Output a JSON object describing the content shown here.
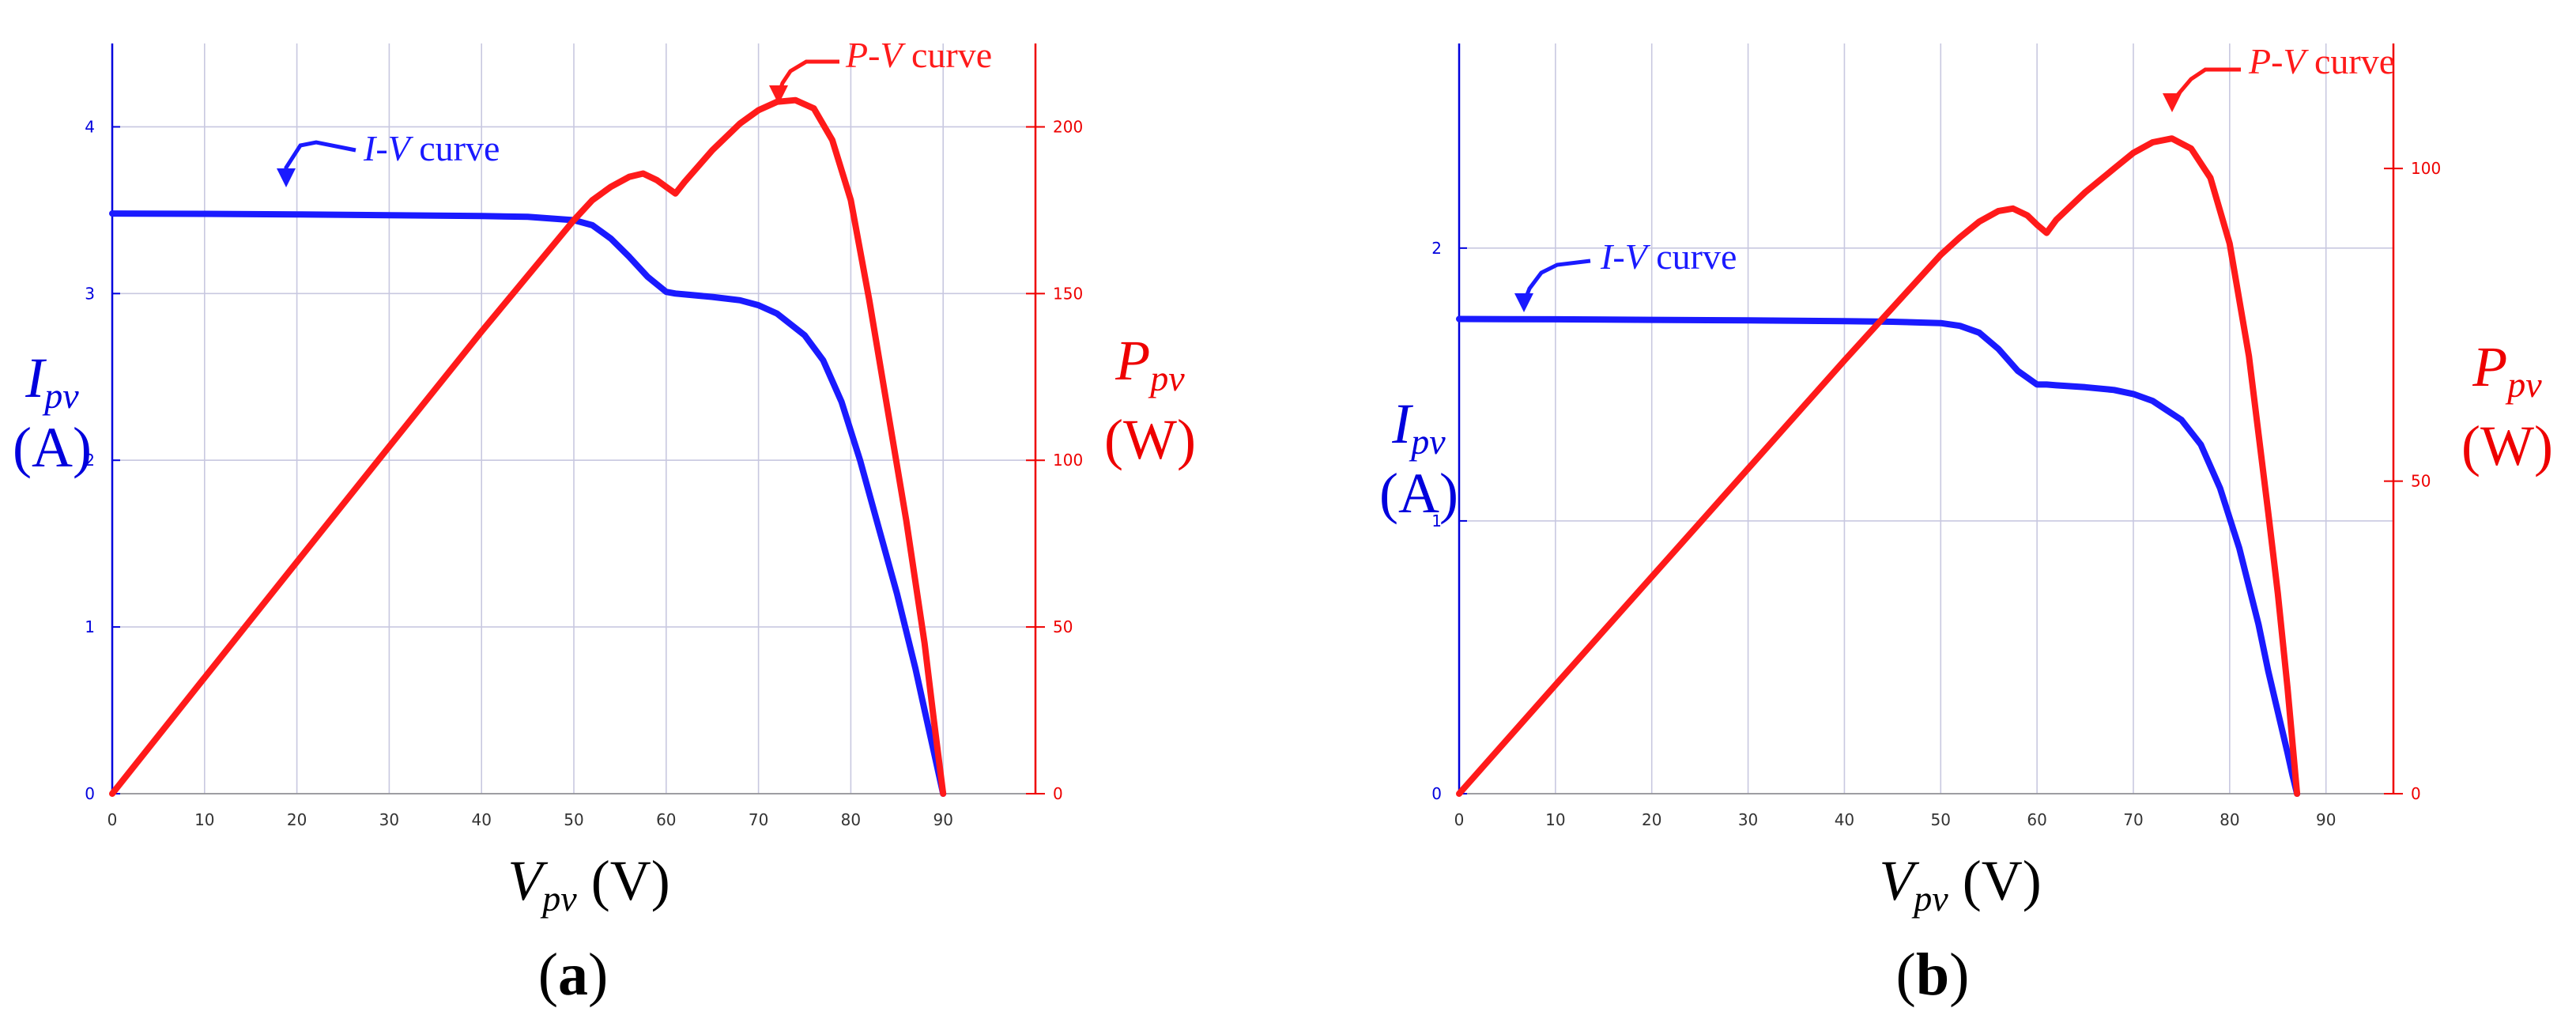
{
  "colors": {
    "current": "#1a1aff",
    "power": "#ff1a1a",
    "grid": "#c8c8e0",
    "axis_left": "#0000dd",
    "axis_right": "#ee0000"
  },
  "chart_data": [
    {
      "panel": "(a)",
      "panel_letter": "a",
      "type": "line",
      "x_axis": {
        "symbol": "V",
        "subscript": "pv",
        "unit": "(V)",
        "range": [
          0,
          100
        ],
        "ticks": [
          0,
          10,
          20,
          30,
          40,
          50,
          60,
          70,
          80,
          90
        ]
      },
      "y_left": {
        "symbol": "I",
        "subscript": "pv",
        "unit": "(A)",
        "range": [
          0,
          4.5
        ],
        "ticks": [
          0,
          1,
          2,
          3,
          4
        ],
        "tick_labels": [
          "0",
          "1",
          "2",
          "3",
          "4"
        ]
      },
      "y_right": {
        "symbol": "P",
        "subscript": "pv",
        "unit": "(W)",
        "range": [
          0,
          225
        ],
        "ticks": [
          0,
          50,
          100,
          150,
          200
        ],
        "tick_labels": [
          "0",
          "50",
          "100",
          "150",
          "200"
        ]
      },
      "grid": true,
      "series": [
        {
          "name": "I-V curve",
          "axis": "left",
          "x": [
            0,
            10,
            20,
            30,
            40,
            45,
            50,
            52,
            54,
            56,
            58,
            60,
            61,
            62,
            65,
            68,
            70,
            72,
            75,
            77,
            79,
            81,
            83,
            85,
            87,
            88,
            89,
            90
          ],
          "y": [
            3.48,
            3.478,
            3.475,
            3.47,
            3.465,
            3.46,
            3.44,
            3.41,
            3.33,
            3.22,
            3.1,
            3.01,
            3.0,
            2.995,
            2.98,
            2.96,
            2.93,
            2.88,
            2.75,
            2.6,
            2.35,
            2.0,
            1.6,
            1.2,
            0.75,
            0.5,
            0.25,
            0.0
          ]
        },
        {
          "name": "P-V curve",
          "axis": "right",
          "x": [
            0,
            10,
            20,
            30,
            40,
            50,
            52,
            54,
            56,
            57.5,
            59,
            60,
            61,
            62,
            65,
            68,
            70,
            72,
            74,
            76,
            78,
            80,
            82,
            84,
            86,
            88,
            89,
            90
          ],
          "y": [
            0,
            34.8,
            69.5,
            104.1,
            138.6,
            172,
            178,
            182,
            185,
            186,
            184,
            182,
            180,
            183.5,
            193,
            201,
            205,
            207.5,
            208,
            205.5,
            196,
            178,
            148,
            115,
            82,
            45,
            22,
            0
          ]
        }
      ],
      "annotations": [
        {
          "italic": "I-V",
          "text": "curve",
          "target_series": "I-V curve"
        },
        {
          "italic": "P-V",
          "text": "curve",
          "target_series": "P-V curve"
        }
      ]
    },
    {
      "panel": "(b)",
      "panel_letter": "b",
      "type": "line",
      "x_axis": {
        "symbol": "V",
        "subscript": "pv",
        "unit": "(V)",
        "range": [
          0,
          97
        ],
        "ticks": [
          0,
          10,
          20,
          30,
          40,
          50,
          60,
          70,
          80,
          90
        ]
      },
      "y_left": {
        "symbol": "I",
        "subscript": "pv",
        "unit": "(A)",
        "range": [
          0,
          2.75
        ],
        "ticks": [
          0,
          1,
          2
        ],
        "tick_labels": [
          "0",
          "1",
          "2"
        ]
      },
      "y_right": {
        "symbol": "P",
        "subscript": "pv",
        "unit": "(W)",
        "range": [
          0,
          120
        ],
        "ticks": [
          0,
          50,
          100
        ],
        "tick_labels": [
          "0",
          "50",
          "100"
        ]
      },
      "grid": true,
      "series": [
        {
          "name": "I-V curve",
          "axis": "left",
          "x": [
            0,
            10,
            20,
            30,
            40,
            45,
            50,
            52,
            54,
            56,
            58,
            60,
            61,
            62,
            65,
            68,
            70,
            72,
            75,
            77,
            79,
            81,
            83,
            84,
            85,
            86,
            86.5,
            87
          ],
          "y": [
            1.74,
            1.739,
            1.737,
            1.735,
            1.732,
            1.73,
            1.725,
            1.715,
            1.69,
            1.63,
            1.55,
            1.5,
            1.5,
            1.497,
            1.49,
            1.48,
            1.465,
            1.44,
            1.37,
            1.28,
            1.12,
            0.9,
            0.62,
            0.45,
            0.3,
            0.15,
            0.07,
            0.0
          ]
        },
        {
          "name": "P-V curve",
          "axis": "right",
          "x": [
            0,
            10,
            20,
            30,
            40,
            50,
            52,
            54,
            56,
            57.5,
            59,
            60,
            61,
            62,
            65,
            68,
            70,
            72,
            74,
            76,
            78,
            80,
            82,
            84,
            85,
            86,
            87
          ],
          "y": [
            0,
            17.4,
            34.7,
            52.0,
            69.3,
            86.2,
            89.0,
            91.5,
            93.2,
            93.6,
            92.5,
            91,
            89.7,
            91.8,
            96.2,
            100.0,
            102.5,
            104.2,
            104.8,
            103.2,
            98.5,
            88.0,
            70.0,
            45.0,
            32.0,
            17.0,
            0
          ]
        }
      ],
      "annotations": [
        {
          "italic": "I-V",
          "text": "curve",
          "target_series": "I-V curve"
        },
        {
          "italic": "P-V",
          "text": "curve",
          "target_series": "P-V curve"
        }
      ]
    }
  ]
}
